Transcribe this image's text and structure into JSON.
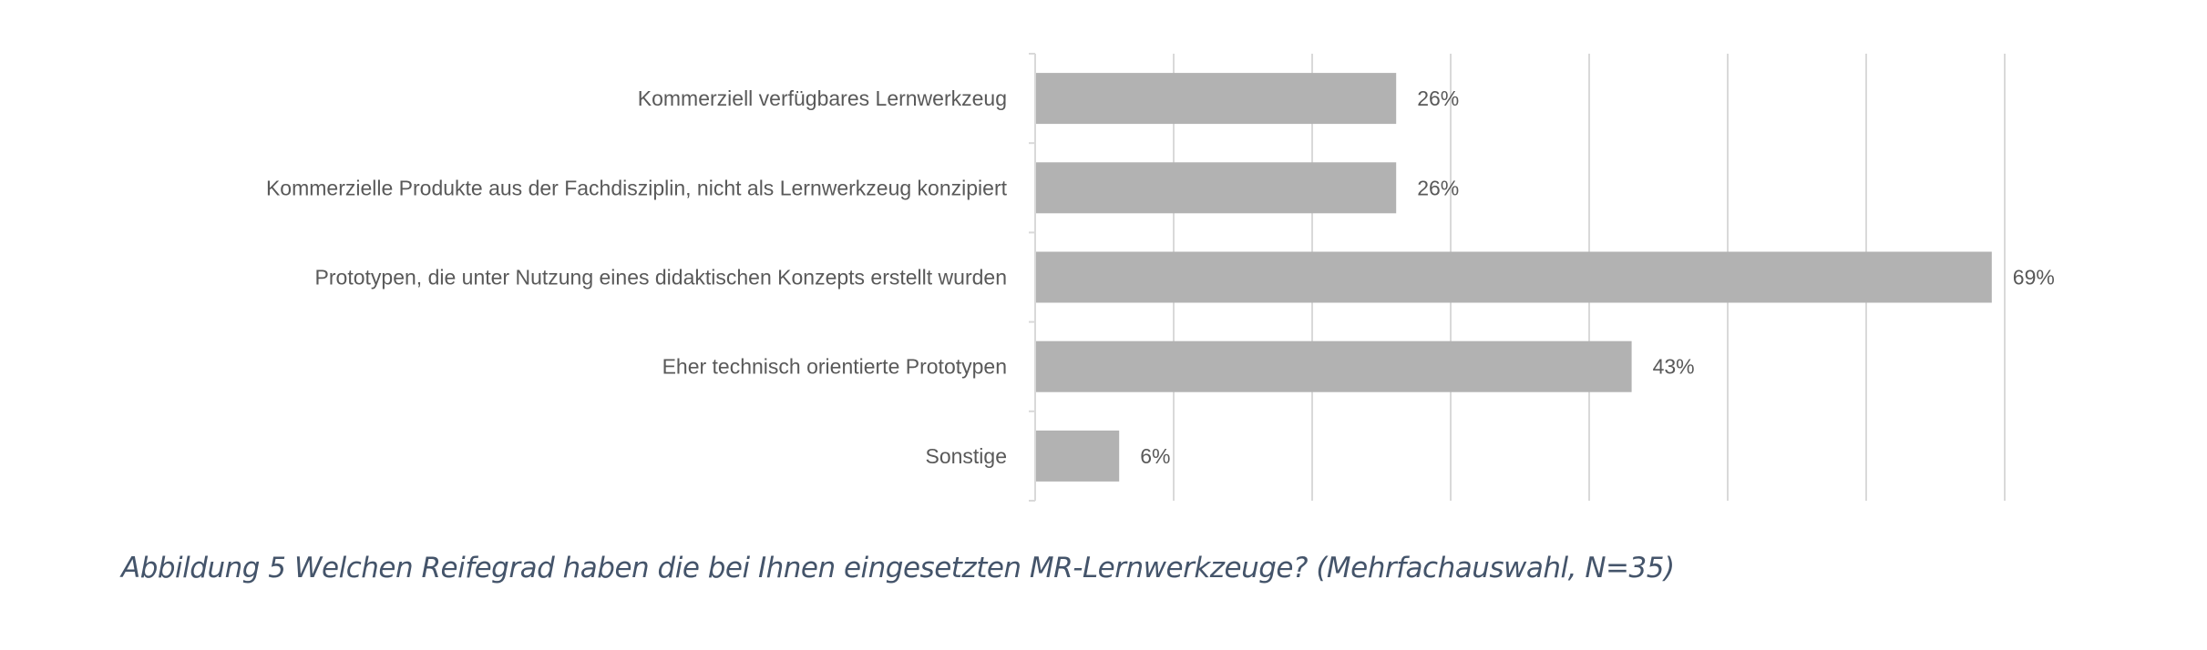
{
  "chart_data": {
    "type": "bar",
    "orientation": "horizontal",
    "categories": [
      "Kommerziell verfügbares Lernwerkzeug",
      "Kommerzielle Produkte aus der Fachdisziplin, nicht als Lernwerkzeug konzipiert",
      "Prototypen, die unter Nutzung eines didaktischen Konzepts erstellt wurden",
      "Eher technisch orientierte Prototypen",
      "Sonstige"
    ],
    "values": [
      26,
      26,
      69,
      43,
      6
    ],
    "data_labels": [
      "26%",
      "26%",
      "69%",
      "43%",
      "6%"
    ],
    "xlim": [
      0,
      70
    ],
    "grid": true,
    "gridline_step": 10,
    "tick_labels_shown": false,
    "legend": "none",
    "bar_color": "#b2b2b2",
    "grid_color": "#d9d9d9"
  },
  "caption": "Abbildung 5 Welchen Reifegrad haben die bei Ihnen eingesetzten MR-Lernwerkzeuge? (Mehrfachauswahl, N=35)"
}
